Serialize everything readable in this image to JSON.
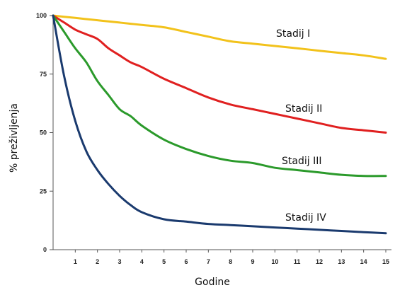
{
  "chart_data": {
    "type": "line",
    "title": "",
    "xlabel": "Godine",
    "ylabel": "% preživljenja",
    "xlim": [
      0,
      15
    ],
    "ylim": [
      0,
      100
    ],
    "xticks": [
      1,
      2,
      3,
      4,
      5,
      6,
      7,
      8,
      9,
      10,
      11,
      12,
      13,
      14,
      15
    ],
    "yticks": [
      0,
      25,
      50,
      75,
      100
    ],
    "grid": false,
    "legend": "inline",
    "x": [
      0,
      0.5,
      1,
      1.5,
      2,
      2.5,
      3,
      3.5,
      4,
      5,
      6,
      7,
      8,
      9,
      10,
      11,
      12,
      13,
      14,
      15
    ],
    "series": [
      {
        "name": "Stadij I",
        "color": "#f2c21b",
        "values": [
          100,
          99.5,
          99,
          98.5,
          98,
          97.5,
          97,
          96.5,
          96,
          95,
          93,
          91,
          89,
          88,
          87,
          86,
          85,
          84,
          83,
          81.5
        ]
      },
      {
        "name": "Stadij II",
        "color": "#e02020",
        "values": [
          100,
          97,
          94,
          92,
          90,
          86,
          83,
          80,
          78,
          73,
          69,
          65,
          62,
          60,
          58,
          56,
          54,
          52,
          51,
          50
        ]
      },
      {
        "name": "Stadij III",
        "color": "#2b9a2b",
        "values": [
          100,
          93,
          86,
          80,
          72,
          66,
          60,
          57,
          53,
          47,
          43,
          40,
          38,
          37,
          35,
          34,
          33,
          32,
          31.5,
          31.5
        ]
      },
      {
        "name": "Stadij IV",
        "color": "#1a3a6e",
        "values": [
          100,
          74,
          55,
          42,
          34,
          28,
          23,
          19,
          16,
          13,
          12,
          11,
          10.5,
          10,
          9.5,
          9,
          8.5,
          8,
          7.5,
          7
        ]
      }
    ]
  }
}
